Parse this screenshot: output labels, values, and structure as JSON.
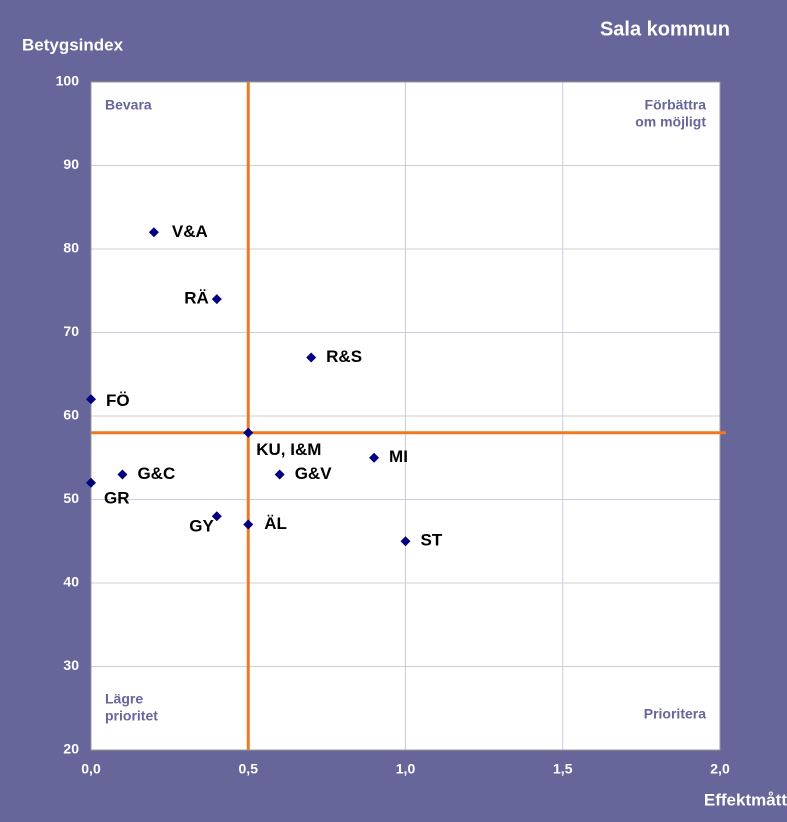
{
  "chart_data": {
    "type": "scatter",
    "title": "Sala kommun",
    "y_label": "Betygsindex",
    "x_label": "Effektmått",
    "labels": [
      "V&A",
      "RÄ",
      "R&S",
      "FÖ",
      "KU, I&M",
      "MI",
      "G&C",
      "G&V",
      "GR",
      "GY",
      "ÄL",
      "ST"
    ],
    "x": [
      0.2,
      0.4,
      0.7,
      0,
      0.5,
      0.9,
      0.1,
      0.6,
      0,
      0.4,
      0.5,
      1.0
    ],
    "y": [
      82,
      74,
      67,
      62,
      58,
      55,
      53,
      53,
      52,
      48,
      47,
      45
    ],
    "color": "#000080",
    "xlim": [
      0,
      2
    ],
    "ylim": [
      20,
      100
    ],
    "xticks": [
      {
        "value": 0,
        "label": "0,0"
      },
      {
        "value": 0.5,
        "label": "0,5"
      },
      {
        "value": 1,
        "label": "1,0"
      },
      {
        "value": 1.5,
        "label": "1,5"
      },
      {
        "value": 2,
        "label": "2,0"
      }
    ],
    "yticks": [
      20,
      30,
      40,
      50,
      60,
      70,
      80,
      90,
      100
    ],
    "grid": true,
    "reference_lines": {
      "x": 0.5,
      "y": 58,
      "color": "#f07820"
    },
    "annotations": [
      {
        "lines": [
          "Bevara"
        ]
      },
      {
        "lines": [
          "Förbättra",
          "om möjligt"
        ]
      },
      {
        "lines": [
          "Lägre",
          "prioritet"
        ]
      },
      {
        "lines": [
          "Prioritera"
        ]
      }
    ]
  }
}
